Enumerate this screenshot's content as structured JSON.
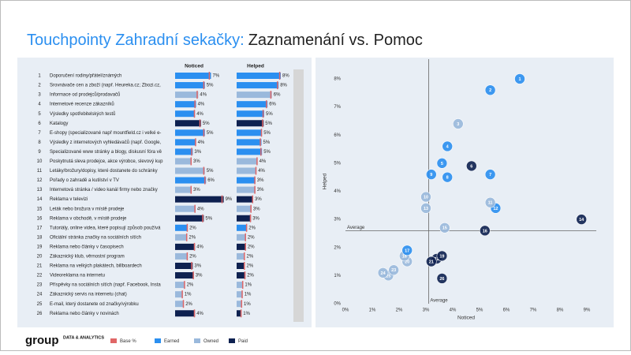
{
  "chart_data": {
    "type": "touchpoints",
    "title": "Touchpointy Zahradní sekačky:",
    "subtitle": "Zaznamenání vs. Pomoc",
    "ranks": [
      1,
      2,
      3,
      4,
      5,
      6,
      7,
      8,
      9,
      10,
      11,
      12,
      13,
      14,
      15,
      16,
      17,
      18,
      19,
      20,
      21,
      22,
      23,
      24,
      25,
      26
    ],
    "categories": [
      "Doporučení rodiny/přátel/známých",
      "Srovnávače cen a zboží (např. Heureka.cz; Zbozi.cz,",
      "Informace od prodejců/prodavačů",
      "Internetové recenze zákazníků",
      "Výsledky spotřebitelských testů",
      "Katalogy",
      "E-shopy (specializované např mountfield.cz i velké e-",
      "Výsledky z internetových vyhledávačů (např. Google,",
      "Specializované www stránky a blogy, diskusní fóra vě",
      "Poskytnutá sleva prodejce, akce výrobce, slevový kup",
      "Letáky/brožury/dopisy, které dostanete do schránky",
      "Pořady o zahradě a kutilství v TV",
      "Internetová stránka / video kanál firmy nebo značky",
      "Reklama v televizi",
      "Leták nebo brožura v místě prodeje",
      "Reklama v obchodě, v místě prodeje",
      "Tutoriály, online videa, které popisují způsob používá",
      "Oficiální stránka značky na sociálních sítích",
      "Reklama nebo články v časopisech",
      "Zákaznický klub, věrnostní program",
      "Reklama na velkých plakátech, billboardech",
      "Videoreklama na internetu",
      "Příspěvky na sociálních sítích (např. Facebook, Insta",
      "Zákaznický servis na internetu (chat)",
      "E-mail, který dostanete od značky/výrobku",
      "Reklama nebo články v novinách"
    ],
    "types": [
      "Earned",
      "Earned",
      "Owned",
      "Earned",
      "Earned",
      "Paid",
      "Earned",
      "Earned",
      "Earned",
      "Owned",
      "Owned",
      "Earned",
      "Owned",
      "Paid",
      "Owned",
      "Paid",
      "Earned",
      "Owned",
      "Paid",
      "Owned",
      "Paid",
      "Paid",
      "Owned",
      "Owned",
      "Owned",
      "Paid"
    ],
    "legend": [
      {
        "name": "Base %",
        "color": "#e06666"
      },
      {
        "name": "Earned",
        "color": "#2b8ff0"
      },
      {
        "name": "Owned",
        "color": "#9ab9dc"
      },
      {
        "name": "Paid",
        "color": "#0e2150"
      }
    ],
    "series": [
      {
        "name": "Noticed",
        "values": [
          6.5,
          5.4,
          4.2,
          3.8,
          3.6,
          4.7,
          5.4,
          3.8,
          3.2,
          3.0,
          5.4,
          5.6,
          3.0,
          8.8,
          3.7,
          5.2,
          2.3,
          2.2,
          3.6,
          2.3,
          3.2,
          3.4,
          1.8,
          1.4,
          1.6,
          3.6
        ],
        "value_labels": [
          "7%",
          "5%",
          "4%",
          "4%",
          "4%",
          "5%",
          "5%",
          "4%",
          "3%",
          "3%",
          "5%",
          "6%",
          "3%",
          "9%",
          "4%",
          "5%",
          "2%",
          "2%",
          "4%",
          "2%",
          "3%",
          "3%",
          "2%",
          "1%",
          "2%",
          "4%"
        ],
        "base": [
          6.2,
          5.2,
          4.0,
          3.6,
          3.5,
          4.5,
          5.2,
          3.7,
          3.0,
          2.9,
          5.2,
          5.4,
          2.9,
          8.5,
          3.6,
          5.0,
          2.2,
          2.1,
          3.5,
          2.2,
          3.0,
          3.3,
          1.7,
          1.3,
          1.5,
          3.5
        ]
      },
      {
        "name": "Helped",
        "values": [
          8.0,
          7.6,
          6.4,
          5.6,
          5.0,
          4.9,
          4.6,
          4.5,
          4.6,
          3.8,
          3.6,
          3.4,
          3.4,
          3.0,
          2.7,
          2.6,
          1.9,
          1.7,
          1.7,
          1.5,
          1.5,
          1.6,
          1.2,
          1.1,
          1.0,
          0.9
        ],
        "value_labels": [
          "8%",
          "8%",
          "6%",
          "6%",
          "5%",
          "5%",
          "5%",
          "5%",
          "5%",
          "4%",
          "4%",
          "3%",
          "3%",
          "3%",
          "3%",
          "3%",
          "2%",
          "2%",
          "2%",
          "2%",
          "2%",
          "2%",
          "1%",
          "1%",
          "1%",
          "1%"
        ],
        "base": [
          7.8,
          7.4,
          6.2,
          5.4,
          4.8,
          4.7,
          4.5,
          4.3,
          4.4,
          3.7,
          3.5,
          3.3,
          3.3,
          2.9,
          2.6,
          2.5,
          1.8,
          1.6,
          1.6,
          1.4,
          1.4,
          1.5,
          1.1,
          1.0,
          0.9,
          0.8
        ]
      }
    ],
    "xlabel": "Noticed",
    "ylabel": "Helped",
    "xlim": [
      0,
      10
    ],
    "ylim": [
      0,
      8.7
    ],
    "xticks": [
      {
        "value": 0,
        "label": "0%"
      },
      {
        "value": 1,
        "label": "1%"
      },
      {
        "value": 2,
        "label": "2%"
      },
      {
        "value": 3,
        "label": "3%"
      },
      {
        "value": 4,
        "label": "4%"
      },
      {
        "value": 5,
        "label": "5%"
      },
      {
        "value": 6,
        "label": "6%"
      },
      {
        "value": 7,
        "label": "7%"
      },
      {
        "value": 8,
        "label": "8%"
      },
      {
        "value": 9,
        "label": "9%"
      }
    ],
    "yticks": [
      {
        "value": 0,
        "label": "0%"
      },
      {
        "value": 1,
        "label": "1%"
      },
      {
        "value": 2,
        "label": "2%"
      },
      {
        "value": 3,
        "label": "3%"
      },
      {
        "value": 4,
        "label": "4%"
      },
      {
        "value": 5,
        "label": "5%"
      },
      {
        "value": 6,
        "label": "6%"
      },
      {
        "value": 7,
        "label": "7%"
      },
      {
        "value": 8,
        "label": "8%"
      }
    ],
    "average_label": "Average",
    "average_x": 3.1,
    "average_y": 2.6,
    "brand": "group",
    "brand_sub": "DATA & ANALYTICS"
  }
}
